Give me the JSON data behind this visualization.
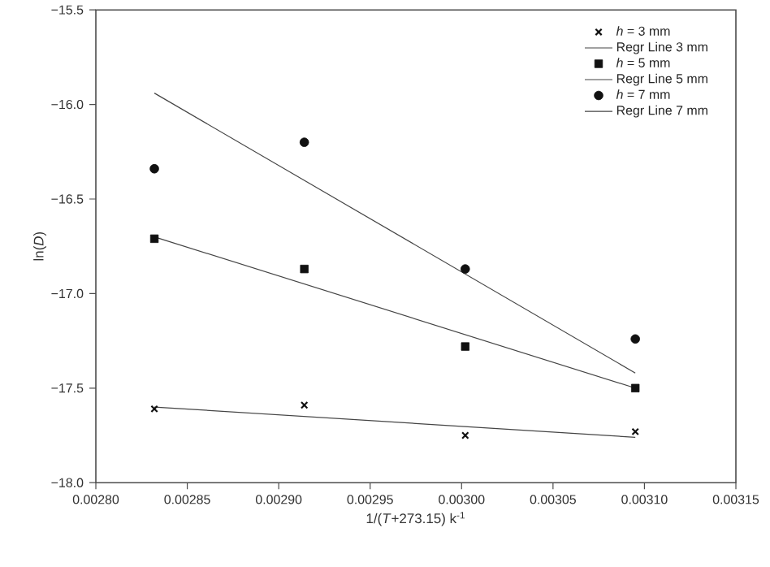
{
  "chart_data": {
    "type": "scatter",
    "xlabel": "1/(*T*+273.15) k$^{-1}$",
    "ylabel": "ln(*D*)",
    "xlim": [
      0.0028,
      0.00315
    ],
    "ylim": [
      -18.0,
      -15.5
    ],
    "xticks": [
      {
        "value": 0.0028,
        "label": "0.00280"
      },
      {
        "value": 0.00285,
        "label": "0.00285"
      },
      {
        "value": 0.0029,
        "label": "0.00290"
      },
      {
        "value": 0.00295,
        "label": "0.00295"
      },
      {
        "value": 0.003,
        "label": "0.00300"
      },
      {
        "value": 0.00305,
        "label": "0.00305"
      },
      {
        "value": 0.0031,
        "label": "0.00310"
      },
      {
        "value": 0.00315,
        "label": "0.00315"
      }
    ],
    "yticks": [
      {
        "value": -18.0,
        "label": "−18.0"
      },
      {
        "value": -17.5,
        "label": "−17.5"
      },
      {
        "value": -17.0,
        "label": "−17.0"
      },
      {
        "value": -16.5,
        "label": "−16.5"
      },
      {
        "value": -16.0,
        "label": "−16.0"
      },
      {
        "value": -15.5,
        "label": "−15.5"
      }
    ],
    "legend": "top right",
    "grid": false,
    "series": [
      {
        "name": "*h* = 3 mm",
        "marker": "cross",
        "color": "#111111",
        "x": [
          0.002832,
          0.002914,
          0.003002,
          0.003095
        ],
        "values": [
          -17.61,
          -17.59,
          -17.75,
          -17.73
        ]
      },
      {
        "name": "Regr Line 3 mm",
        "type": "line",
        "marker": "none",
        "line_style": "solid",
        "color": "#444444",
        "x": [
          0.002832,
          0.003095
        ],
        "values": [
          -17.6,
          -17.76
        ]
      },
      {
        "name": "*h* = 5 mm",
        "marker": "square",
        "color": "#111111",
        "x": [
          0.002832,
          0.002914,
          0.003002,
          0.003095
        ],
        "values": [
          -16.71,
          -16.87,
          -17.28,
          -17.5
        ]
      },
      {
        "name": "Regr Line 5 mm",
        "type": "line",
        "marker": "none",
        "line_style": "solid",
        "color": "#444444",
        "x": [
          0.002832,
          0.003095
        ],
        "values": [
          -16.7,
          -17.5
        ]
      },
      {
        "name": "*h* = 7 mm",
        "marker": "circle",
        "color": "#111111",
        "x": [
          0.002832,
          0.002914,
          0.003002,
          0.003095
        ],
        "values": [
          -16.34,
          -16.2,
          -16.87,
          -17.24
        ]
      },
      {
        "name": "Regr Line 7 mm",
        "type": "line",
        "marker": "none",
        "line_style": "solid",
        "color": "#444444",
        "x": [
          0.002832,
          0.003095
        ],
        "values": [
          -15.94,
          -17.42
        ]
      }
    ]
  }
}
